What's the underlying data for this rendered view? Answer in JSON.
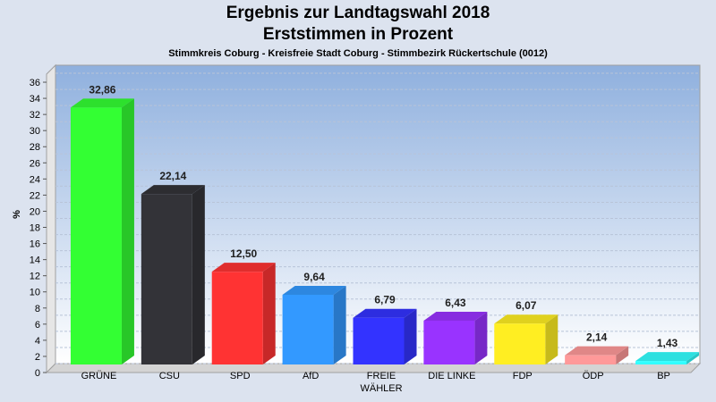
{
  "chart_data": {
    "type": "bar",
    "title": "Ergebnis zur Landtagswahl 2018",
    "subtitle": "Erststimmen in Prozent",
    "subtitle2": "Stimmkreis Coburg - Kreisfreie Stadt Coburg - Stimmbezirk Rückertschule (0012)",
    "ylabel": "%",
    "xlabel": "",
    "ylim": [
      0,
      37
    ],
    "yticks": [
      0,
      2,
      4,
      6,
      8,
      10,
      12,
      14,
      16,
      18,
      20,
      22,
      24,
      26,
      28,
      30,
      32,
      34,
      36
    ],
    "grid": true,
    "categories": [
      "GRÜNE",
      "CSU",
      "SPD",
      "AfD",
      "FREIE WÄHLER",
      "DIE LINKE",
      "FDP",
      "ÖDP",
      "BP"
    ],
    "values": [
      32.86,
      22.14,
      12.5,
      9.64,
      6.79,
      6.43,
      6.07,
      2.14,
      1.43
    ],
    "value_labels": [
      "32,86",
      "22,14",
      "12,50",
      "9,64",
      "6,79",
      "6,43",
      "6,07",
      "2,14",
      "1,43"
    ],
    "colors": [
      "#33ff33",
      "#333338",
      "#ff3333",
      "#3399ff",
      "#3333ff",
      "#9933ff",
      "#ffee22",
      "#ff9999",
      "#33ffff"
    ]
  }
}
